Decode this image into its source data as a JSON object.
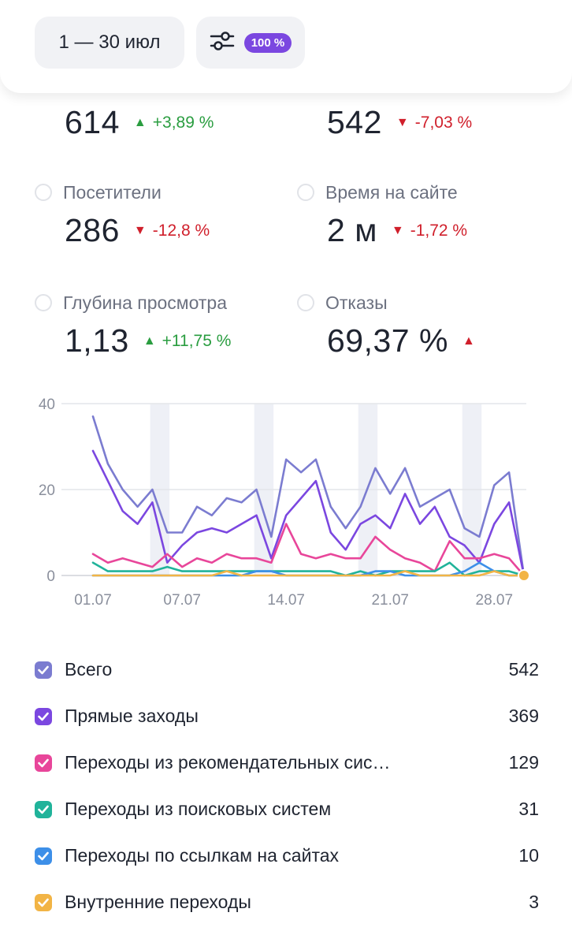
{
  "header": {
    "date_range": "1 — 30 июл",
    "filter_badge": "100 %"
  },
  "metrics": [
    {
      "label": "",
      "value": "614",
      "direction": "up",
      "delta": "+3,89 %"
    },
    {
      "label": "",
      "value": "542",
      "direction": "down",
      "delta": "-7,03 %"
    },
    {
      "label": "Посетители",
      "value": "286",
      "direction": "down",
      "delta": "-12,8 %"
    },
    {
      "label": "Время на сайте",
      "value": "2 м",
      "direction": "down",
      "delta": "-1,72 %"
    },
    {
      "label": "Глубина просмотра",
      "value": "1,13",
      "direction": "up",
      "delta": "+11,75 %"
    },
    {
      "label": "Отказы",
      "value": "69,37 %",
      "direction": "up",
      "delta": ""
    }
  ],
  "legend": [
    {
      "label": "Всего",
      "value": "542",
      "color": "#7b7cd0"
    },
    {
      "label": "Прямые заходы",
      "value": "369",
      "color": "#7b47e0"
    },
    {
      "label": "Переходы из рекомендательных сис…",
      "value": "129",
      "color": "#e8469a"
    },
    {
      "label": "Переходы из поисковых систем",
      "value": "31",
      "color": "#20b39a"
    },
    {
      "label": "Переходы по ссылкам на сайтах",
      "value": "10",
      "color": "#3d8fe8"
    },
    {
      "label": "Внутренние переходы",
      "value": "3",
      "color": "#f2b445"
    }
  ],
  "chart_data": {
    "type": "line",
    "x": [
      "01.07",
      "02.07",
      "03.07",
      "04.07",
      "05.07",
      "06.07",
      "07.07",
      "08.07",
      "09.07",
      "10.07",
      "11.07",
      "12.07",
      "13.07",
      "14.07",
      "15.07",
      "16.07",
      "17.07",
      "18.07",
      "19.07",
      "20.07",
      "21.07",
      "22.07",
      "23.07",
      "24.07",
      "25.07",
      "26.07",
      "27.07",
      "28.07",
      "29.07",
      "30.07"
    ],
    "x_ticks": [
      "01.07",
      "07.07",
      "14.07",
      "21.07",
      "28.07"
    ],
    "ylim": [
      0,
      40
    ],
    "y_ticks": [
      0,
      20,
      40
    ],
    "weekend_bands": [
      [
        "05.07",
        "06.07"
      ],
      [
        "12.07",
        "13.07"
      ],
      [
        "19.07",
        "20.07"
      ],
      [
        "26.07",
        "27.07"
      ]
    ],
    "series": [
      {
        "name": "Всего",
        "color": "#7b7cd0",
        "values": [
          37,
          26,
          20,
          16,
          20,
          10,
          10,
          16,
          14,
          18,
          17,
          20,
          9,
          27,
          24,
          27,
          16,
          11,
          16,
          25,
          19,
          25,
          16,
          18,
          20,
          11,
          9,
          21,
          24,
          0
        ]
      },
      {
        "name": "Прямые заходы",
        "color": "#7b47e0",
        "values": [
          29,
          22,
          15,
          12,
          17,
          3,
          7,
          10,
          11,
          10,
          12,
          14,
          4,
          14,
          18,
          22,
          10,
          6,
          12,
          14,
          11,
          19,
          12,
          16,
          9,
          7,
          3,
          12,
          17,
          0
        ]
      },
      {
        "name": "Переходы из рекомендательных систем",
        "color": "#e8469a",
        "values": [
          5,
          3,
          4,
          3,
          2,
          5,
          2,
          4,
          3,
          5,
          4,
          4,
          3,
          12,
          5,
          4,
          5,
          4,
          4,
          9,
          6,
          4,
          3,
          1,
          8,
          4,
          4,
          5,
          4,
          0
        ]
      },
      {
        "name": "Переходы из поисковых систем",
        "color": "#20b39a",
        "values": [
          3,
          1,
          1,
          1,
          1,
          2,
          1,
          1,
          1,
          1,
          1,
          1,
          1,
          1,
          1,
          1,
          1,
          0,
          1,
          0,
          1,
          1,
          1,
          1,
          3,
          0,
          1,
          1,
          1,
          0
        ]
      },
      {
        "name": "Переходы по ссылкам на сайтах",
        "color": "#3d8fe8",
        "values": [
          0,
          0,
          0,
          0,
          0,
          0,
          0,
          0,
          0,
          0,
          0,
          1,
          1,
          0,
          0,
          0,
          0,
          0,
          0,
          1,
          1,
          0,
          0,
          0,
          0,
          1,
          3,
          1,
          0,
          0
        ]
      },
      {
        "name": "Внутренние переходы",
        "color": "#f2b445",
        "values": [
          0,
          0,
          0,
          0,
          0,
          0,
          0,
          0,
          0,
          1,
          0,
          0,
          0,
          0,
          0,
          0,
          0,
          0,
          0,
          0,
          0,
          1,
          0,
          0,
          0,
          0,
          0,
          1,
          0,
          0
        ]
      }
    ],
    "highlight_point": {
      "x": "30.07",
      "y": 0,
      "color": "#f2b445"
    }
  }
}
